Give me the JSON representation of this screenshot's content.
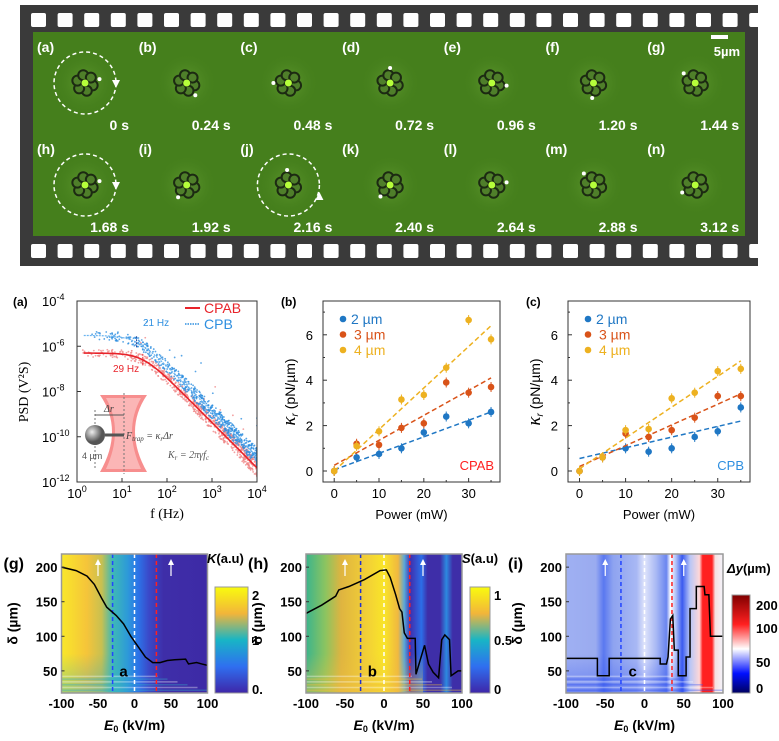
{
  "filmstrip": {
    "scale_bar": "5µm",
    "frames": [
      {
        "label": "(a)",
        "time": "0 s"
      },
      {
        "label": "(b)",
        "time": "0.24 s"
      },
      {
        "label": "(c)",
        "time": "0.48 s"
      },
      {
        "label": "(d)",
        "time": "0.72 s"
      },
      {
        "label": "(e)",
        "time": "0.96 s"
      },
      {
        "label": "(f)",
        "time": "1.20 s"
      },
      {
        "label": "(g)",
        "time": "1.44 s"
      },
      {
        "label": "(h)",
        "time": "1.68 s"
      },
      {
        "label": "(i)",
        "time": "1.92 s"
      },
      {
        "label": "(j)",
        "time": "2.16 s"
      },
      {
        "label": "(k)",
        "time": "2.40 s"
      },
      {
        "label": "(l)",
        "time": "2.64 s"
      },
      {
        "label": "(m)",
        "time": "2.88 s"
      },
      {
        "label": "(n)",
        "time": "3.12 s"
      }
    ],
    "colors": {
      "film": "#3a3a3a",
      "hole": "#ffffff",
      "background": "#457f1c"
    }
  },
  "chart_data": [
    {
      "panel": "(a)",
      "type": "scatter",
      "xscale": "log",
      "yscale": "log",
      "xlabel": "f (Hz)",
      "ylabel": "PSD (V²S)",
      "xlim": [
        1,
        10000
      ],
      "ylim": [
        1e-12,
        0.0001
      ],
      "xticks": [
        "10^0",
        "10^1",
        "10^2",
        "10^3",
        "10^4"
      ],
      "yticks": [
        "10^-4",
        "10^-6",
        "10^-8",
        "10^-10",
        "10^-12"
      ],
      "legend_position": "top-right",
      "series": [
        {
          "name": "CPAB",
          "plateau": 5e-07,
          "corner_frequency": 29,
          "annotation": "29 Hz",
          "color": "#e8232a",
          "point_color": "#f08a8a"
        },
        {
          "name": "CPB",
          "plateau": 3e-06,
          "corner_frequency": 21,
          "annotation": "21 Hz",
          "color": "#2e8fe0",
          "point_color": "#2e8fe0"
        }
      ],
      "inset": {
        "delta": "Δr",
        "force": "F",
        "force_sub": "trap",
        "force_eq": " = κ",
        "force_eq_sub": "r",
        "force_eq_end": "Δr",
        "stiffness": "K",
        "stiffness_sub": "r",
        "stiffness_eq": " = 2πγf",
        "stiffness_eq_sub": "c",
        "size": "4 µm"
      }
    },
    {
      "panel": "(b)",
      "type": "scatter",
      "annotation": "CPAB",
      "annotation_color": "#ff2020",
      "xlabel": "Power (mW)",
      "ylabel": "κ",
      "ylabel_sub": "r",
      "ylabel_unit": " (pN/µm)",
      "xlim": [
        -2.5,
        37
      ],
      "ylim": [
        -0.5,
        7.5
      ],
      "xticks": [
        0,
        10,
        20,
        30
      ],
      "yticks": [
        0,
        2,
        4,
        6
      ],
      "legend_position": "top-left",
      "x": [
        0,
        5,
        10,
        15,
        20,
        25,
        30,
        35
      ],
      "series": [
        {
          "name": "2 µm",
          "color": "#1f77c4",
          "values": [
            0,
            0.6,
            0.75,
            1.0,
            1.7,
            2.4,
            2.1,
            2.6
          ],
          "fit": [
            0.05,
            2.6
          ]
        },
        {
          "name": "3 µm",
          "color": "#d95319",
          "values": [
            0,
            1.2,
            1.15,
            1.9,
            2.1,
            3.9,
            3.45,
            3.7
          ],
          "fit": [
            0.25,
            4.1
          ]
        },
        {
          "name": "4 µm",
          "color": "#edb120",
          "values": [
            0,
            1.1,
            1.75,
            3.15,
            3.35,
            4.55,
            6.65,
            5.8
          ],
          "fit": [
            0.0,
            6.4
          ]
        }
      ]
    },
    {
      "panel": "(c)",
      "type": "scatter",
      "annotation": "CPB",
      "annotation_color": "#2e8fe0",
      "xlabel": "Power (mW)",
      "ylabel": "κ",
      "ylabel_sub": "r",
      "ylabel_unit": " (pN/µm)",
      "xlim": [
        -2.5,
        37
      ],
      "ylim": [
        -0.5,
        7.5
      ],
      "xticks": [
        0,
        10,
        20,
        30
      ],
      "yticks": [
        0,
        2,
        4,
        6
      ],
      "legend_position": "top-left",
      "x": [
        0,
        5,
        10,
        15,
        20,
        25,
        30,
        35
      ],
      "series": [
        {
          "name": "2 µm",
          "color": "#1f77c4",
          "values": [
            0,
            0.6,
            1.0,
            0.85,
            1.0,
            1.5,
            1.75,
            2.8
          ],
          "fit": [
            0.55,
            2.2
          ]
        },
        {
          "name": "3 µm",
          "color": "#d95319",
          "values": [
            0,
            0.6,
            1.65,
            1.5,
            1.8,
            2.35,
            3.3,
            3.3
          ],
          "fit": [
            0.2,
            3.4
          ]
        },
        {
          "name": "4 µm",
          "color": "#edb120",
          "values": [
            0,
            0.6,
            1.8,
            1.85,
            3.2,
            3.45,
            4.4,
            4.5
          ],
          "fit": [
            0.1,
            4.85
          ]
        }
      ]
    },
    {
      "panel": "(g)",
      "type": "heatmap",
      "inner_label": "a",
      "xlabel": "E",
      "xlabel_sub": "0",
      "xlabel_unit": " (kV/m)",
      "ylabel": "δ (µm)",
      "xlim": [
        -100,
        100
      ],
      "ylim": [
        18,
        219
      ],
      "xticks": [
        -100,
        -50,
        0,
        50,
        100
      ],
      "yticks": [
        50,
        100,
        150,
        200
      ],
      "colorbar": {
        "label": "K",
        "unit": "(a.u)",
        "ticks": [
          "2",
          "1",
          "0."
        ],
        "range": [
          0,
          2
        ],
        "stops": [
          [
            "0",
            "#3e26a8"
          ],
          [
            "0.25",
            "#2f6ff0"
          ],
          [
            "0.5",
            "#18b5c5"
          ],
          [
            "0.75",
            "#f2b53a"
          ],
          [
            "1",
            "#f9fb0e"
          ]
        ]
      },
      "columns": [
        [
          -100,
          "#f9e829"
        ],
        [
          -65,
          "#f5c43a"
        ],
        [
          -45,
          "#c8c050"
        ],
        [
          -30,
          "#3fb9b5"
        ],
        [
          -10,
          "#2d9bd8"
        ],
        [
          5,
          "#2c73e8"
        ],
        [
          20,
          "#3b48c8"
        ],
        [
          40,
          "#3e2ea8"
        ],
        [
          100,
          "#3d2aa6"
        ]
      ],
      "dashed_lines": [
        [
          -30,
          "#2244ff"
        ],
        [
          0,
          "#ffffff"
        ],
        [
          30,
          "#ff2020"
        ]
      ],
      "arrows": [
        -50,
        50
      ],
      "curve": [
        [
          -100,
          200
        ],
        [
          -80,
          195
        ],
        [
          -65,
          187
        ],
        [
          -55,
          175
        ],
        [
          -45,
          155
        ],
        [
          -38,
          142
        ],
        [
          -25,
          130
        ],
        [
          -15,
          118
        ],
        [
          -5,
          100
        ],
        [
          5,
          85
        ],
        [
          15,
          70
        ],
        [
          25,
          62
        ],
        [
          35,
          62
        ],
        [
          45,
          65
        ],
        [
          55,
          66
        ],
        [
          70,
          67
        ],
        [
          74,
          60
        ],
        [
          85,
          62
        ],
        [
          92,
          60
        ],
        [
          100,
          58
        ]
      ]
    },
    {
      "panel": "(h)",
      "type": "heatmap",
      "inner_label": "b",
      "xlabel": "E",
      "xlabel_sub": "0",
      "xlabel_unit": " (kV/m)",
      "ylabel": "δ (µm)",
      "xlim": [
        -100,
        100
      ],
      "ylim": [
        18,
        219
      ],
      "xticks": [
        -100,
        -50,
        0,
        50,
        100
      ],
      "yticks": [
        50,
        100,
        150,
        200
      ],
      "colorbar": {
        "label": "S",
        "unit": "(a.u)",
        "ticks": [
          "1",
          "0.5",
          "0"
        ],
        "range": [
          0,
          1
        ],
        "stops": [
          [
            "0",
            "#3e26a8"
          ],
          [
            "0.25",
            "#2f6ff0"
          ],
          [
            "0.5",
            "#18b5c5"
          ],
          [
            "0.75",
            "#f2b53a"
          ],
          [
            "1",
            "#f9fb0e"
          ]
        ]
      },
      "columns": [
        [
          -100,
          "#3bb48c"
        ],
        [
          -75,
          "#8cc460"
        ],
        [
          -55,
          "#dfb440"
        ],
        [
          -20,
          "#f3d135"
        ],
        [
          0,
          "#f9e529"
        ],
        [
          18,
          "#f0b840"
        ],
        [
          26,
          "#5aa8d8"
        ],
        [
          34,
          "#3e30b0"
        ],
        [
          48,
          "#2c6ee8"
        ],
        [
          56,
          "#3e2ea8"
        ],
        [
          72,
          "#3e2ea8"
        ],
        [
          80,
          "#2c8ae0"
        ],
        [
          88,
          "#3e2ea8"
        ],
        [
          100,
          "#3e2ea8"
        ]
      ],
      "dashed_lines": [
        [
          -30,
          "#2233cc"
        ],
        [
          0,
          "#ffffff"
        ],
        [
          33,
          "#ff2020"
        ]
      ],
      "arrows": [
        -50,
        50
      ],
      "curve": [
        [
          -100,
          133
        ],
        [
          -80,
          145
        ],
        [
          -62,
          158
        ],
        [
          -58,
          167
        ],
        [
          -45,
          172
        ],
        [
          -25,
          182
        ],
        [
          -5,
          195
        ],
        [
          3,
          196
        ],
        [
          8,
          185
        ],
        [
          15,
          160
        ],
        [
          20,
          140
        ],
        [
          23,
          135
        ],
        [
          26,
          105
        ],
        [
          30,
          97
        ],
        [
          40,
          97
        ],
        [
          41,
          45
        ],
        [
          52,
          87
        ],
        [
          57,
          60
        ],
        [
          63,
          48
        ],
        [
          70,
          40
        ],
        [
          74,
          95
        ],
        [
          78,
          102
        ],
        [
          84,
          95
        ],
        [
          86,
          43
        ],
        [
          95,
          50
        ],
        [
          100,
          50
        ]
      ]
    },
    {
      "panel": "(i)",
      "type": "heatmap",
      "inner_label": "c",
      "xlabel": "E",
      "xlabel_sub": "0",
      "xlabel_unit": " (kV/m)",
      "ylabel": "δ (µm)",
      "xlim": [
        -100,
        100
      ],
      "ylim": [
        18,
        219
      ],
      "xticks": [
        -100,
        -50,
        0,
        50,
        100
      ],
      "yticks": [
        50,
        100,
        150,
        200
      ],
      "colorbar": {
        "label": "Δy",
        "unit": "(µm)",
        "ticks": [
          "200",
          "100",
          "50",
          "0"
        ],
        "range": [
          0,
          200
        ],
        "stops": [
          [
            "0",
            "#000060"
          ],
          [
            "0.2",
            "#0010ff"
          ],
          [
            "0.45",
            "#ffffff"
          ],
          [
            "0.7",
            "#ff2020"
          ],
          [
            "1",
            "#800000"
          ]
        ]
      },
      "columns": [
        [
          -100,
          "#9fb0f2"
        ],
        [
          -62,
          "#9aabf0"
        ],
        [
          -52,
          "#5a78f0"
        ],
        [
          -40,
          "#8ea3f0"
        ],
        [
          -10,
          "#a8b8f4"
        ],
        [
          0,
          "#dfe4fb"
        ],
        [
          15,
          "#a8b8f4"
        ],
        [
          28,
          "#6a85f0"
        ],
        [
          33,
          "#ffffff"
        ],
        [
          40,
          "#b0c0f6"
        ],
        [
          48,
          "#3a5af0"
        ],
        [
          58,
          "#b8c6f7"
        ],
        [
          70,
          "#ffd8d8"
        ],
        [
          74,
          "#ff2020"
        ],
        [
          86,
          "#ff2020"
        ],
        [
          90,
          "#f7e0e0"
        ],
        [
          100,
          "#f4f4fc"
        ]
      ],
      "dashed_lines": [
        [
          -30,
          "#2244ff"
        ],
        [
          0,
          "#ffffff"
        ],
        [
          35,
          "#ff2020"
        ]
      ],
      "arrows": [
        -50,
        50
      ],
      "curve": [
        [
          -100,
          68
        ],
        [
          -60,
          68
        ],
        [
          -60,
          43
        ],
        [
          -45,
          43
        ],
        [
          -45,
          68
        ],
        [
          20,
          68
        ],
        [
          20,
          60
        ],
        [
          28,
          60
        ],
        [
          30,
          70
        ],
        [
          33,
          125
        ],
        [
          36,
          130
        ],
        [
          38,
          80
        ],
        [
          43,
          80
        ],
        [
          43,
          43
        ],
        [
          53,
          43
        ],
        [
          53,
          70
        ],
        [
          58,
          70
        ],
        [
          58,
          140
        ],
        [
          66,
          140
        ],
        [
          66,
          172
        ],
        [
          76,
          172
        ],
        [
          77,
          160
        ],
        [
          82,
          160
        ],
        [
          84,
          100
        ],
        [
          100,
          100
        ]
      ]
    }
  ]
}
